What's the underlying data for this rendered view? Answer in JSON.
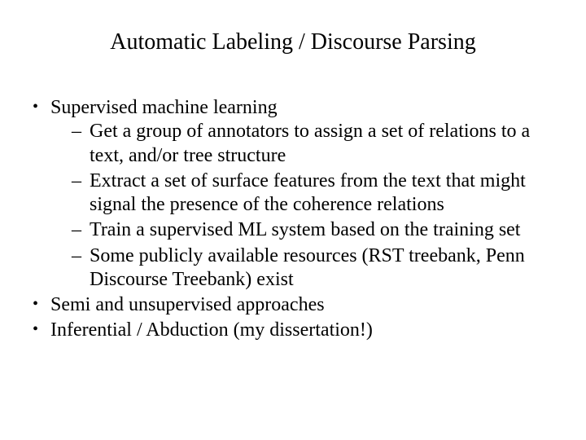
{
  "background_color": "#ffffff",
  "text_color": "#000000",
  "font_family": "Times New Roman",
  "title": {
    "text": "Automatic Labeling / Discourse Parsing",
    "fontsize": 28,
    "align": "center"
  },
  "body": {
    "fontsize": 24,
    "bullets": [
      {
        "text": "Supervised machine learning",
        "sub": [
          "Get a group of annotators to assign a set of relations to a text, and/or tree structure",
          "Extract a set of surface features from the text that might signal the presence of the coherence relations",
          "Train a supervised ML system based on the training set",
          "Some publicly available resources (RST treebank, Penn Discourse Treebank) exist"
        ]
      },
      {
        "text": "Semi and unsupervised approaches",
        "sub": []
      },
      {
        "text": "Inferential / Abduction  (my dissertation!)",
        "sub": []
      }
    ]
  }
}
